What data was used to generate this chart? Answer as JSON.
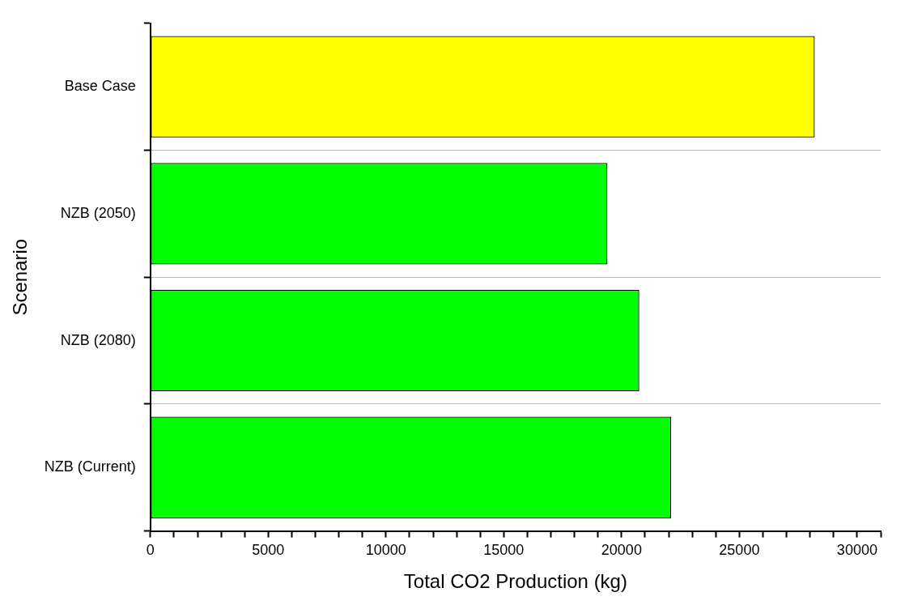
{
  "chart_data": {
    "type": "bar",
    "orientation": "horizontal",
    "xlabel": "Total CO2 Production (kg)",
    "ylabel": "Scenario",
    "categories": [
      "Base Case",
      "NZB (2050)",
      "NZB (2080)",
      "NZB (Current)"
    ],
    "values": [
      28200,
      19400,
      20750,
      22100
    ],
    "colors": [
      "#ffff00",
      "#00ff00",
      "#00ff00",
      "#00ff00"
    ],
    "xlim": [
      0,
      31000
    ],
    "xticks": [
      0,
      {
        "value": 1000,
        "label": null
      },
      {
        "value": 2000,
        "label": null
      },
      {
        "value": 3000,
        "label": null
      },
      {
        "value": 4000,
        "label": null
      },
      5000,
      {
        "value": 6000,
        "label": null
      },
      {
        "value": 7000,
        "label": null
      },
      {
        "value": 8000,
        "label": null
      },
      {
        "value": 9000,
        "label": null
      },
      10000,
      {
        "value": 11000,
        "label": null
      },
      {
        "value": 12000,
        "label": null
      },
      {
        "value": 13000,
        "label": null
      },
      {
        "value": 14000,
        "label": null
      },
      15000,
      {
        "value": 16000,
        "label": null
      },
      {
        "value": 17000,
        "label": null
      },
      {
        "value": 18000,
        "label": null
      },
      {
        "value": 19000,
        "label": null
      },
      20000,
      {
        "value": 21000,
        "label": null
      },
      {
        "value": 22000,
        "label": null
      },
      {
        "value": 23000,
        "label": null
      },
      {
        "value": 24000,
        "label": null
      },
      25000,
      {
        "value": 26000,
        "label": null
      },
      {
        "value": 27000,
        "label": null
      },
      {
        "value": 28000,
        "label": null
      },
      {
        "value": 29000,
        "label": null
      },
      30000,
      {
        "value": 31000,
        "label": null
      }
    ],
    "grid": "y",
    "legend": false
  }
}
